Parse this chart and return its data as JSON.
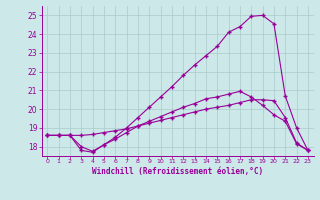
{
  "xlabel": "Windchill (Refroidissement éolien,°C)",
  "bg_color": "#cce8e8",
  "line_color": "#990099",
  "grid_color": "#aacccc",
  "xlim": [
    -0.5,
    23.5
  ],
  "ylim": [
    17.5,
    25.5
  ],
  "yticks": [
    18,
    19,
    20,
    21,
    22,
    23,
    24,
    25
  ],
  "xticks": [
    0,
    1,
    2,
    3,
    4,
    5,
    6,
    7,
    8,
    9,
    10,
    11,
    12,
    13,
    14,
    15,
    16,
    17,
    18,
    19,
    20,
    21,
    22,
    23
  ],
  "line1_x": [
    0,
    1,
    2,
    3,
    4,
    5,
    6,
    7,
    8,
    9,
    10,
    11,
    12,
    13,
    14,
    15,
    16,
    17,
    18,
    19,
    20,
    21,
    22,
    23
  ],
  "line1_y": [
    18.6,
    18.6,
    18.6,
    18.0,
    17.75,
    18.1,
    18.4,
    18.75,
    19.1,
    19.35,
    19.6,
    19.85,
    20.1,
    20.3,
    20.55,
    20.65,
    20.8,
    20.95,
    20.65,
    20.2,
    19.7,
    19.35,
    18.15,
    17.8
  ],
  "line2_x": [
    0,
    1,
    2,
    3,
    4,
    5,
    6,
    7,
    8,
    9,
    10,
    11,
    12,
    13,
    14,
    15,
    16,
    17,
    18,
    19,
    20,
    21,
    22,
    23
  ],
  "line2_y": [
    18.6,
    18.6,
    18.6,
    18.6,
    18.65,
    18.75,
    18.85,
    18.95,
    19.1,
    19.25,
    19.4,
    19.55,
    19.7,
    19.85,
    20.0,
    20.1,
    20.2,
    20.35,
    20.5,
    20.5,
    20.45,
    19.55,
    18.2,
    17.8
  ],
  "line3_x": [
    0,
    1,
    2,
    3,
    4,
    5,
    6,
    7,
    8,
    9,
    10,
    11,
    12,
    13,
    14,
    15,
    16,
    17,
    18,
    19,
    20,
    21,
    22,
    23
  ],
  "line3_y": [
    18.6,
    18.6,
    18.6,
    17.8,
    17.7,
    18.1,
    18.5,
    19.0,
    19.55,
    20.1,
    20.65,
    21.2,
    21.8,
    22.35,
    22.85,
    23.35,
    24.1,
    24.4,
    24.95,
    25.0,
    24.55,
    20.7,
    19.0,
    17.8
  ]
}
